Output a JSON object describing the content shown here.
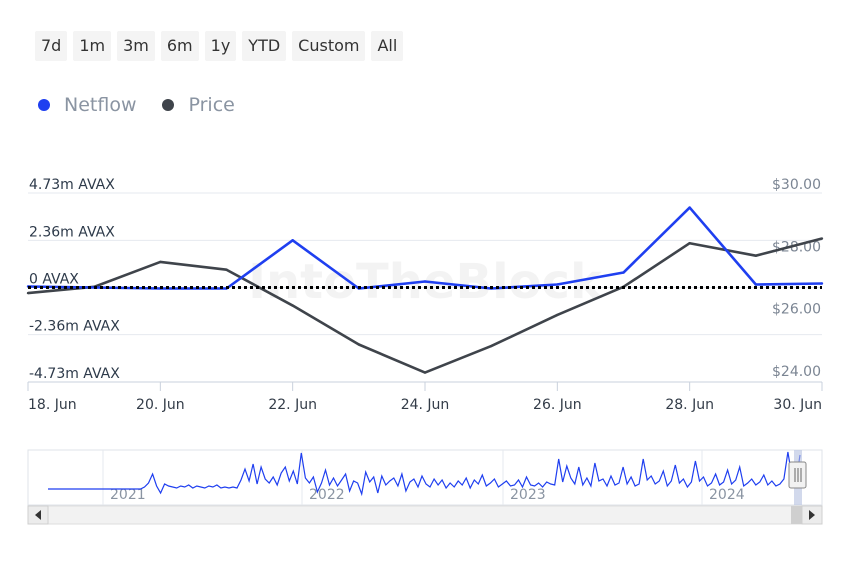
{
  "range_buttons": [
    "7d",
    "1m",
    "3m",
    "6m",
    "1y",
    "YTD",
    "Custom",
    "All"
  ],
  "watermark": "IntoTheBlock",
  "colors": {
    "netflow": "#1f3ff0",
    "price": "#3f444b",
    "zero_line": "#000000"
  },
  "chart_data": {
    "type": "line",
    "x": [
      "18 Jun",
      "19 Jun",
      "20 Jun",
      "21 Jun",
      "22 Jun",
      "23 Jun",
      "24 Jun",
      "25 Jun",
      "26 Jun",
      "27 Jun",
      "28 Jun",
      "29 Jun",
      "30 Jun"
    ],
    "x_tick_labels": [
      "18. Jun",
      "20. Jun",
      "22. Jun",
      "24. Jun",
      "26. Jun",
      "28. Jun",
      "30. Jun"
    ],
    "series": [
      {
        "name": "Netflow",
        "axis": "left",
        "color": "#1f3ff0",
        "values": [
          0.05,
          0.0,
          -0.05,
          -0.05,
          2.36,
          -0.05,
          0.3,
          -0.05,
          0.15,
          0.75,
          4.0,
          0.15,
          0.2
        ]
      },
      {
        "name": "Price",
        "axis": "right",
        "color": "#3f444b",
        "values": [
          26.5,
          26.7,
          27.5,
          27.25,
          26.1,
          24.85,
          23.95,
          24.8,
          25.8,
          26.7,
          28.1,
          27.7,
          28.25
        ]
      }
    ],
    "y_left": {
      "ticks": [
        4.73,
        2.36,
        0,
        -2.36,
        -4.73
      ],
      "tick_labels": [
        "4.73m AVAX",
        "2.36m AVAX",
        "0 AVAX",
        "-2.36m AVAX",
        "-4.73m AVAX"
      ],
      "range": [
        -4.73,
        4.73
      ]
    },
    "y_right": {
      "ticks": [
        30,
        28,
        26,
        24
      ],
      "tick_labels": [
        "$30.00",
        "$28.00",
        "$26.00",
        "$24.00"
      ],
      "range": [
        24,
        30
      ]
    },
    "zero_line": "dotted",
    "legend_placement": "top-left",
    "grid": true
  },
  "navigator": {
    "year_labels": [
      "2021",
      "2022",
      "2023",
      "2024"
    ],
    "overview_values": [
      0,
      0,
      0,
      0,
      0,
      0,
      0,
      0,
      0,
      0,
      0,
      0,
      0,
      0,
      0,
      0,
      0,
      0,
      0,
      0,
      0,
      0,
      0,
      0,
      0.2,
      0.6,
      1.5,
      0.3,
      -0.4,
      0.5,
      0.3,
      0.2,
      0.1,
      0.3,
      0.2,
      0.4,
      0.1,
      0.3,
      0.2,
      0.1,
      0.3,
      0.2,
      0.4,
      0.1,
      0.2,
      0.1,
      0.2,
      0.1,
      0.9,
      2.0,
      0.8,
      2.5,
      0.5,
      2.2,
      1.0,
      0.6,
      1.2,
      0.4,
      1.6,
      2.2,
      0.8,
      1.8,
      0.5,
      3.6,
      1.1,
      0.6,
      1.2,
      -0.3,
      0.6,
      1.9,
      0.4,
      1.1,
      0.3,
      0.9,
      1.5,
      -0.2,
      0.8,
      0.6,
      -0.5,
      1.7,
      0.7,
      1.2,
      -0.4,
      1.3,
      0.4,
      0.8,
      1.1,
      0.3,
      1.5,
      -0.2,
      0.7,
      1.0,
      0.2,
      1.3,
      0.5,
      0.2,
      1.0,
      0.4,
      0.9,
      0.1,
      0.6,
      0.2,
      0.8,
      0.4,
      1.1,
      0.1,
      0.9,
      0.5,
      1.4,
      0.3,
      0.6,
      1.0,
      0.2,
      0.5,
      0.8,
      0.3,
      0.4,
      0.9,
      0.2,
      1.2,
      0.4,
      0.3,
      0.6,
      0.2,
      0.7,
      0.5,
      0.4,
      3.0,
      0.7,
      2.3,
      1.1,
      0.5,
      2.2,
      0.4,
      1.1,
      0.3,
      2.6,
      0.8,
      1.0,
      0.3,
      1.3,
      0.4,
      0.6,
      2.2,
      0.5,
      1.2,
      0.3,
      0.5,
      3.0,
      0.9,
      1.3,
      0.5,
      0.8,
      1.8,
      0.3,
      0.8,
      2.4,
      0.6,
      1.0,
      0.2,
      0.7,
      2.8,
      0.8,
      1.2,
      0.3,
      0.6,
      1.5,
      0.4,
      0.7,
      1.9,
      0.5,
      0.9,
      2.2,
      0.3,
      0.6,
      1.0,
      0.4,
      0.7,
      1.4,
      0.4,
      0.8,
      0.3,
      0.5,
      1.0,
      3.7,
      1.2,
      0.6,
      3.4
    ]
  }
}
